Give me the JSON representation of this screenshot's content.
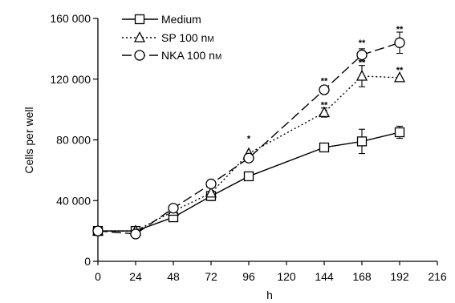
{
  "chart_data": {
    "type": "line",
    "title": "",
    "xlabel": "h",
    "ylabel": "Cells per well",
    "xlim": [
      0,
      216
    ],
    "ylim": [
      0,
      160000
    ],
    "x_ticks": [
      0,
      24,
      48,
      72,
      96,
      120,
      144,
      168,
      192,
      216
    ],
    "y_ticks": [
      0,
      40000,
      80000,
      120000,
      160000
    ],
    "y_tick_labels": [
      "0",
      "40 000",
      "80 000",
      "120 000",
      "160 000"
    ],
    "legend_position": "top-left",
    "series": [
      {
        "name": "Medium",
        "marker": "square",
        "linestyle": "solid",
        "color": "#000000",
        "x": [
          0,
          24,
          48,
          72,
          96,
          144,
          168,
          192
        ],
        "y": [
          20000,
          20000,
          29000,
          43000,
          56000,
          75000,
          79000,
          85000
        ],
        "err": [
          0,
          0,
          0,
          3000,
          0,
          0,
          8000,
          4000
        ]
      },
      {
        "name": "SP 100 nM",
        "label_main": "SP 100 n",
        "label_unit": "M",
        "marker": "triangle",
        "linestyle": "dotted",
        "color": "#000000",
        "x": [
          0,
          24,
          48,
          72,
          96,
          144,
          168,
          192
        ],
        "y": [
          20000,
          20000,
          33000,
          45000,
          71000,
          98000,
          122000,
          121000
        ],
        "err": [
          0,
          0,
          0,
          0,
          0,
          3000,
          7000,
          0
        ]
      },
      {
        "name": "NKA 100 nM",
        "label_main": "NKA 100 n",
        "label_unit": "M",
        "marker": "circle",
        "linestyle": "dashed",
        "color": "#000000",
        "x": [
          0,
          24,
          48,
          72,
          96,
          144,
          168,
          192
        ],
        "y": [
          20000,
          18000,
          35000,
          51000,
          68000,
          113000,
          136000,
          144000
        ],
        "err": [
          0,
          0,
          0,
          0,
          0,
          0,
          4000,
          7000
        ]
      }
    ],
    "annotations": [
      {
        "text": "*",
        "x": 96,
        "y": 79000
      },
      {
        "text": "**",
        "x": 144,
        "y": 117000
      },
      {
        "text": "**",
        "x": 144,
        "y": 101000
      },
      {
        "text": "**",
        "x": 168,
        "y": 142000
      },
      {
        "text": "**",
        "x": 168,
        "y": 129000
      },
      {
        "text": "**",
        "x": 192,
        "y": 151000
      },
      {
        "text": "**",
        "x": 192,
        "y": 124000
      }
    ]
  }
}
